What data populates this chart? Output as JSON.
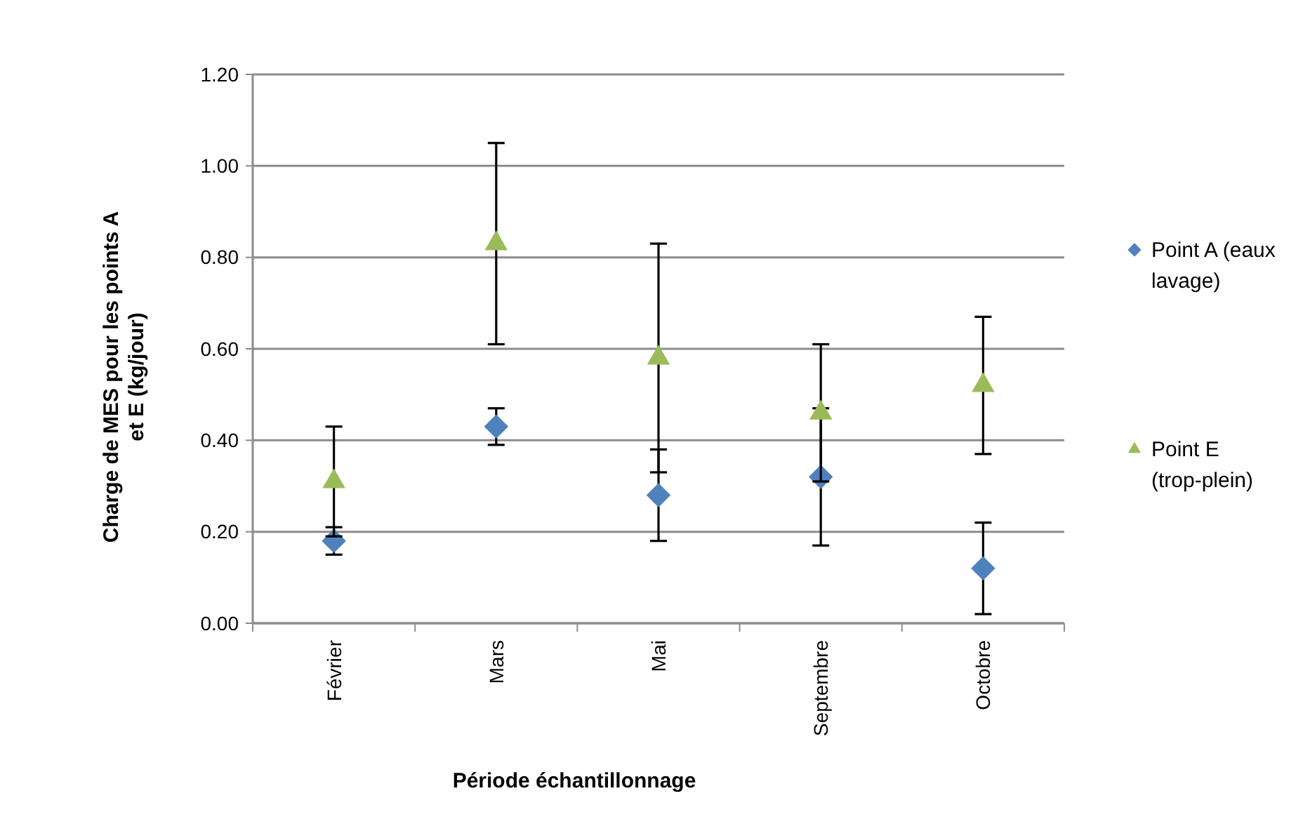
{
  "chart_data": {
    "type": "scatter",
    "xlabel": "Période échantillonnage",
    "ylabel": "Charge de  MES pour les points A et E (kg/jour)",
    "categories": [
      "Février",
      "Mars",
      "Mai",
      "Septembre",
      "Octobre"
    ],
    "series": [
      {
        "name": "Point A (eaux lavage)",
        "color": "#4f81bd",
        "marker": "diamond",
        "values": [
          0.18,
          0.43,
          0.28,
          0.32,
          0.12
        ],
        "errors": [
          0.03,
          0.04,
          0.1,
          0.15,
          0.1
        ]
      },
      {
        "name": "Point E (trop-plein)",
        "color": "#9bbb59",
        "marker": "triangle",
        "values": [
          0.31,
          0.83,
          0.58,
          0.46,
          0.52
        ],
        "errors": [
          0.12,
          0.22,
          0.25,
          0.15,
          0.15
        ]
      }
    ],
    "ylim": [
      0,
      1.2
    ],
    "yticks": [
      {
        "value": 0,
        "label": "0.00"
      },
      {
        "value": 0.2,
        "label": "0.20"
      },
      {
        "value": 0.4,
        "label": "0.40"
      },
      {
        "value": 0.6,
        "label": "0.60"
      },
      {
        "value": 0.8,
        "label": "0.80"
      },
      {
        "value": 1,
        "label": "1.00"
      },
      {
        "value": 1.2,
        "label": "1.20"
      }
    ],
    "grid": "y",
    "legend": "right"
  }
}
